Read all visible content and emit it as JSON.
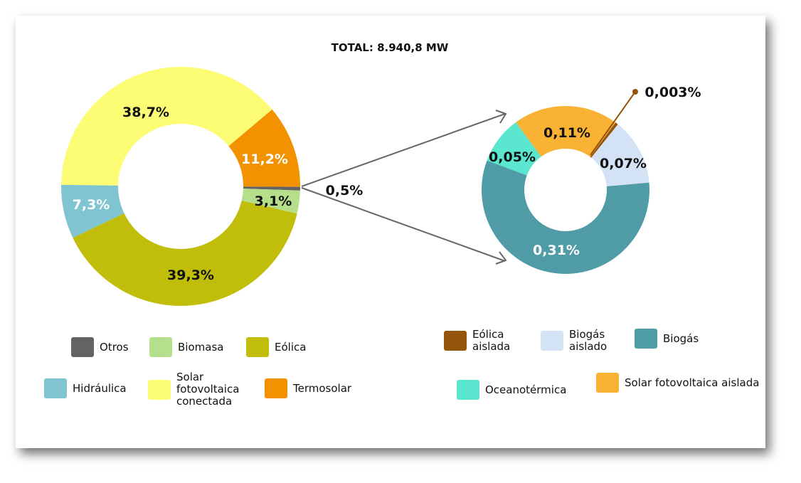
{
  "chart_data": [
    {
      "type": "pie",
      "donut": true,
      "title": "TOTAL: 8.940,8 MW",
      "slices": [
        {
          "name": "Otros",
          "value": 0.5,
          "label": "0,5%",
          "color": "#636363"
        },
        {
          "name": "Termosolar",
          "value": 11.2,
          "label": "11,2%",
          "color": "#f29200"
        },
        {
          "name": "Solar fotovoltaica conectada",
          "value": 38.7,
          "label": "38,7%",
          "color": "#fdfd75"
        },
        {
          "name": "Hidráulica",
          "value": 7.3,
          "label": "7,3%",
          "color": "#80c4d2"
        },
        {
          "name": "Eólica",
          "value": 39.3,
          "label": "39,3%",
          "color": "#c0be0b"
        },
        {
          "name": "Biomasa",
          "value": 3.1,
          "label": "3,1%",
          "color": "#b6df8b"
        }
      ],
      "legend": [
        {
          "label": "Otros",
          "color": "#636363"
        },
        {
          "label": "Biomasa",
          "color": "#b6df8b"
        },
        {
          "label": "Eólica",
          "color": "#c0be0b"
        },
        {
          "label": "Hidráulica",
          "color": "#80c4d2"
        },
        {
          "label": "Solar fotovoltaica conectada",
          "color": "#fdfd75"
        },
        {
          "label": "Termosolar",
          "color": "#f29200"
        }
      ]
    },
    {
      "type": "pie",
      "donut": true,
      "slices": [
        {
          "name": "Biogás aislado",
          "value": 0.07,
          "label": "0,07%",
          "color": "#d3e3f5"
        },
        {
          "name": "Eólica aislada",
          "value": 0.003,
          "label": "0,003%",
          "color": "#94540a"
        },
        {
          "name": "Solar fotovoltaica aislada",
          "value": 0.11,
          "label": "0,11%",
          "color": "#f9b233"
        },
        {
          "name": "Oceanotérmica",
          "value": 0.05,
          "label": "0,05%",
          "color": "#5ae6cf"
        },
        {
          "name": "Biogás",
          "value": 0.31,
          "label": "0,31%",
          "color": "#509ca6"
        }
      ],
      "legend": [
        {
          "label": "Eólica aislada",
          "color": "#94540a"
        },
        {
          "label": "Biogás aislado",
          "color": "#d3e3f5"
        },
        {
          "label": "Biogás",
          "color": "#509ca6"
        },
        {
          "label": "Oceanotérmica",
          "color": "#5ae6cf"
        },
        {
          "label": "Solar fotovoltaica aislada",
          "color": "#f9b233"
        }
      ]
    }
  ]
}
